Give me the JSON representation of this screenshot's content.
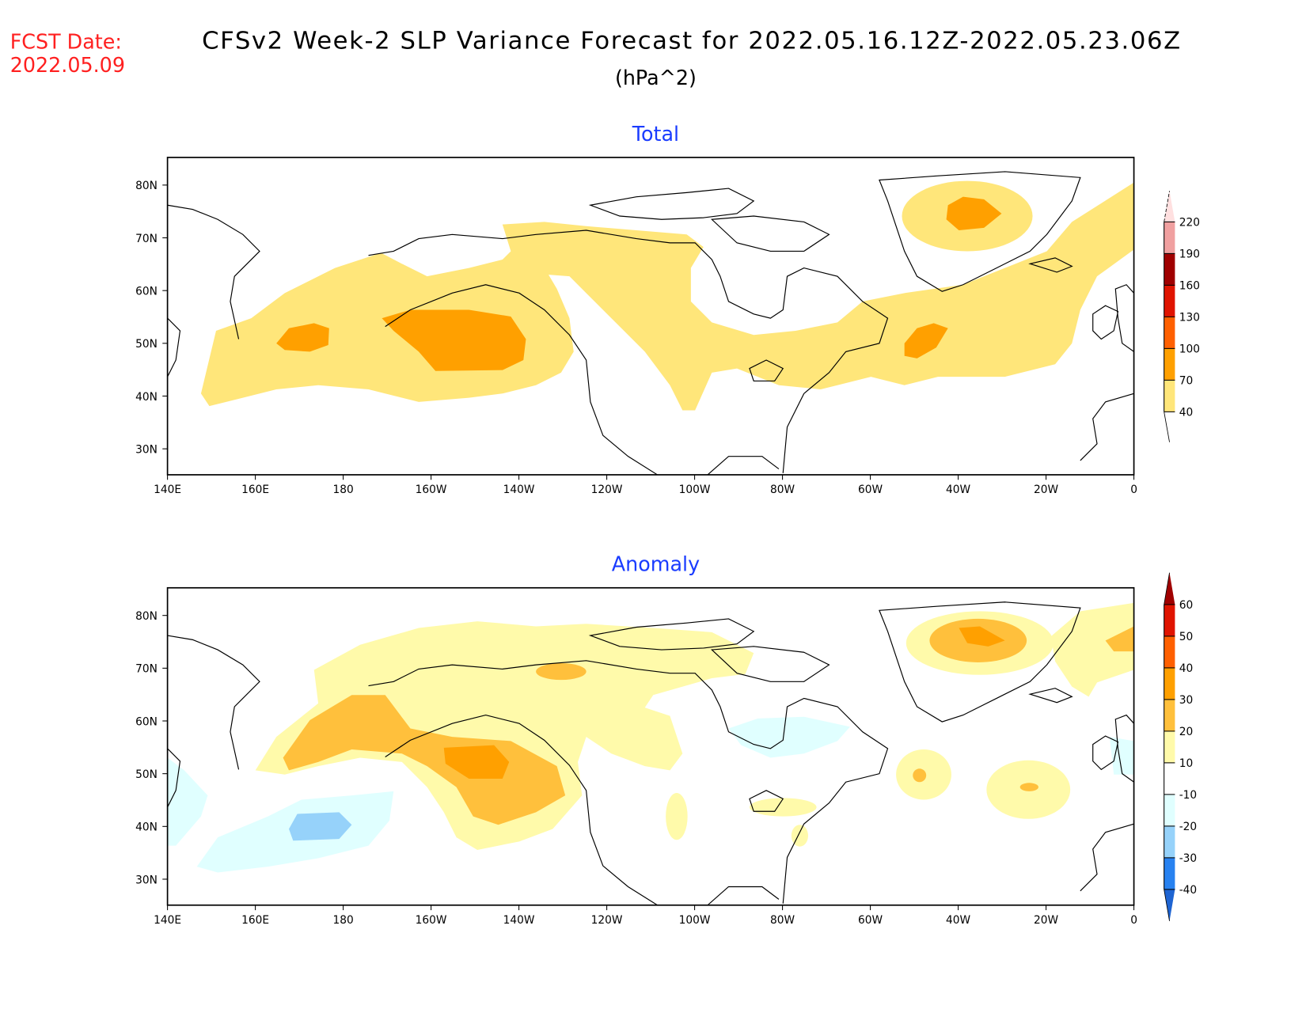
{
  "header": {
    "fcst_label": "FCST Date:",
    "fcst_date": "2022.05.09",
    "title": "CFSv2 Week-2 SLP Variance Forecast for 2022.05.16.12Z-2022.05.23.06Z",
    "units": "(hPa^2)"
  },
  "axes": {
    "lat_labels": [
      "80N",
      "70N",
      "60N",
      "50N",
      "40N",
      "30N"
    ],
    "lon_labels": [
      "140E",
      "160E",
      "180",
      "160W",
      "140W",
      "120W",
      "100W",
      "80W",
      "60W",
      "40W",
      "20W",
      "0"
    ]
  },
  "panels": [
    {
      "title": "Total",
      "colorbar": {
        "levels": [
          "220",
          "190",
          "160",
          "130",
          "100",
          "70",
          "40"
        ],
        "band_colors": [
          "#f0a0a0",
          "#a00000",
          "#e01400",
          "#ff6000",
          "#ffa000",
          "#ffe67a"
        ],
        "top_color": "#ffe0e0",
        "bottom_color": "#ffffff"
      }
    },
    {
      "title": "Anomaly",
      "colorbar": {
        "levels": [
          "60",
          "50",
          "40",
          "30",
          "20",
          "10",
          "-10",
          "-20",
          "-30",
          "-40"
        ],
        "band_colors": [
          "#e01400",
          "#ff6000",
          "#ffa000",
          "#ffc03c",
          "#fffaaa",
          "#ffffff",
          "#e0ffff",
          "#96d2fa",
          "#2882f0"
        ],
        "top_color": "#a00000",
        "bottom_color": "#1e64d2"
      }
    }
  ],
  "colors": {
    "header_red": "#ff2020",
    "panel_title_blue": "#1a3cff"
  }
}
